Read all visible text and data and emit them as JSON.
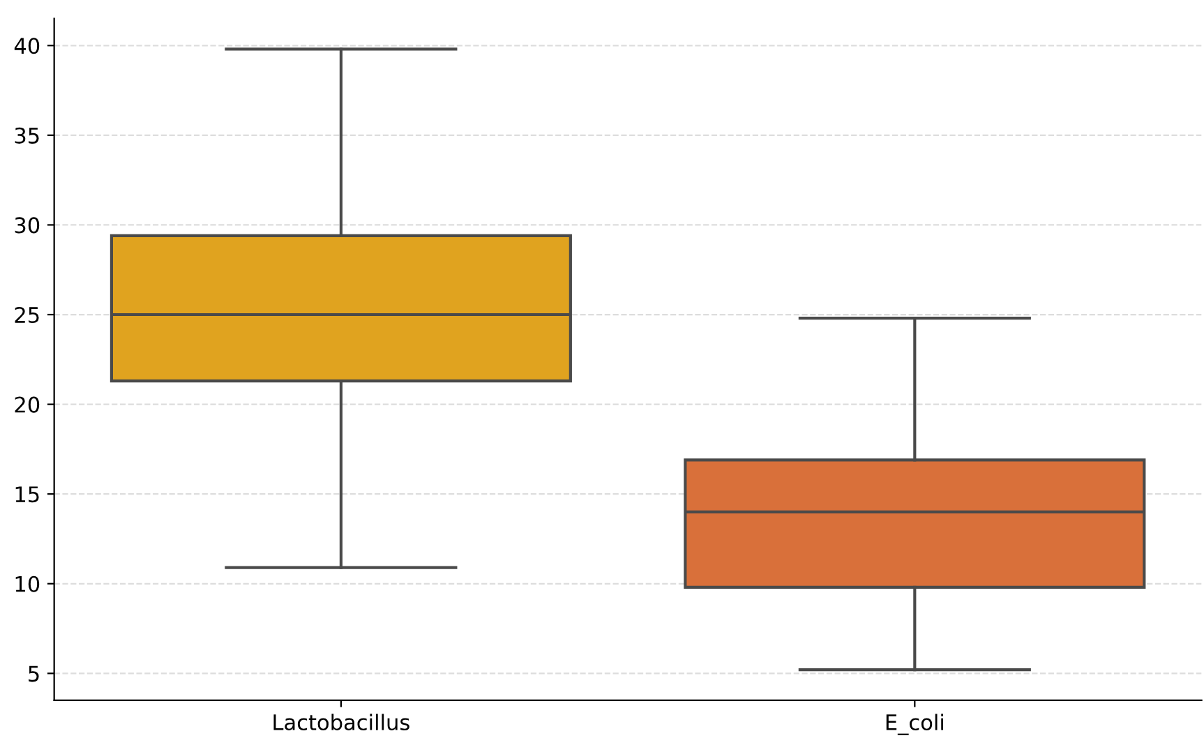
{
  "chart_data": {
    "type": "box",
    "categories": [
      "Lactobacillus",
      "E_coli"
    ],
    "boxes": [
      {
        "low": 10.9,
        "q1": 21.3,
        "median": 25.0,
        "q3": 29.4,
        "high": 39.8
      },
      {
        "low": 5.2,
        "q1": 9.8,
        "median": 14.0,
        "q3": 16.9,
        "high": 24.8
      }
    ],
    "colors": [
      "#e0a31f",
      "#d9703a"
    ],
    "ylim": [
      3.5,
      41.5
    ],
    "yticks": [
      5,
      10,
      15,
      20,
      25,
      30,
      35,
      40
    ],
    "grid": "y"
  }
}
